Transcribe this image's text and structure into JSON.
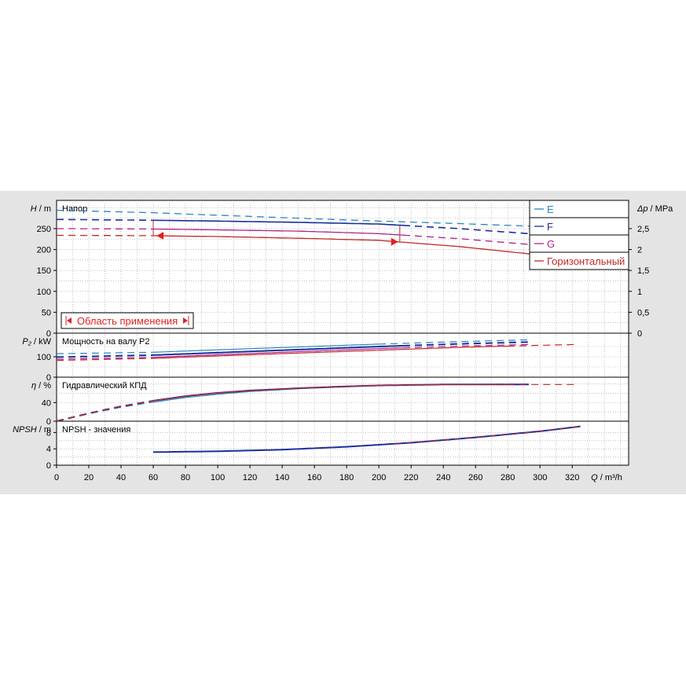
{
  "chart_data": {
    "type": "line",
    "x": {
      "label": "Q",
      "unit": "m³/h",
      "range": [
        0,
        355
      ],
      "ticks": [
        0,
        20,
        40,
        60,
        80,
        100,
        120,
        140,
        160,
        180,
        200,
        220,
        240,
        260,
        280,
        300,
        320
      ]
    },
    "colors": {
      "E": "#2a86b8",
      "F": "#1a2e9a",
      "G": "#b0208a",
      "Горизонтальный": "#c0282a"
    },
    "legend": {
      "placement": "top-right",
      "items": [
        {
          "key": "E",
          "label": "E"
        },
        {
          "key": "F",
          "label": "F"
        },
        {
          "key": "G",
          "label": "G"
        },
        {
          "key": "Горизонтальный",
          "label": "Горизонтальный"
        }
      ]
    },
    "panels": [
      {
        "id": "head",
        "title": "Напор",
        "ylabel_left": {
          "sym": "H",
          "unit": "m"
        },
        "ylabel_right": {
          "sym": "Δp",
          "unit": "MPa"
        },
        "ylim": [
          0,
          310
        ],
        "yticks": [
          0,
          50,
          100,
          150,
          200,
          250
        ],
        "yticks_right": [
          {
            "value": 0,
            "label": "0"
          },
          {
            "value": 0.5,
            "label": "0,5"
          },
          {
            "value": 1,
            "label": "1"
          },
          {
            "value": 1.5,
            "label": "1,5"
          },
          {
            "value": 2,
            "label": "2"
          },
          {
            "value": 2.5,
            "label": "2,5"
          }
        ],
        "right_scale": 0.01,
        "annotation": {
          "text": "Область применения",
          "q_min": 62,
          "q_max": 213
        },
        "series": [
          {
            "key": "E",
            "points": [
              [
                0,
                294
              ],
              [
                60,
                288
              ],
              [
                100,
                282
              ],
              [
                150,
                275
              ],
              [
                200,
                268
              ],
              [
                250,
                262
              ],
              [
                300,
                255
              ]
            ],
            "solid_range": [
              0,
              0
            ],
            "thick": 1.3
          },
          {
            "key": "F",
            "points": [
              [
                0,
                272
              ],
              [
                60,
                270
              ],
              [
                100,
                268
              ],
              [
                150,
                265
              ],
              [
                200,
                261
              ],
              [
                250,
                250
              ],
              [
                300,
                236
              ]
            ],
            "solid_range": [
              60,
              215
            ],
            "thick": 1.6
          },
          {
            "key": "G",
            "points": [
              [
                0,
                250
              ],
              [
                60,
                249
              ],
              [
                100,
                247
              ],
              [
                150,
                244
              ],
              [
                200,
                238
              ],
              [
                250,
                226
              ],
              [
                300,
                210
              ]
            ],
            "solid_range": [
              60,
              215
            ],
            "thick": 1.3
          },
          {
            "key": "Горизонтальный",
            "points": [
              [
                0,
                234
              ],
              [
                60,
                233
              ],
              [
                100,
                231
              ],
              [
                150,
                227
              ],
              [
                200,
                222
              ],
              [
                250,
                207
              ],
              [
                300,
                187
              ]
            ],
            "solid_range": [
              60,
              300
            ],
            "thick": 1.3
          }
        ]
      },
      {
        "id": "power",
        "title": "Мощность на валу P2",
        "ylabel_left": {
          "sym": "P₂",
          "unit": "kW"
        },
        "ylim": [
          0,
          200
        ],
        "yticks": [
          0,
          100
        ],
        "series": [
          {
            "key": "E",
            "points": [
              [
                0,
                115
              ],
              [
                60,
                122
              ],
              [
                100,
                134
              ],
              [
                150,
                148
              ],
              [
                200,
                162
              ],
              [
                250,
                174
              ],
              [
                293,
                183
              ]
            ],
            "solid_range": [
              60,
              200
            ],
            "thick": 1.2
          },
          {
            "key": "F",
            "points": [
              [
                0,
                98
              ],
              [
                60,
                108
              ],
              [
                100,
                120
              ],
              [
                150,
                135
              ],
              [
                200,
                150
              ],
              [
                250,
                163
              ],
              [
                293,
                172
              ]
            ],
            "solid_range": [
              60,
              215
            ],
            "thick": 2.0
          },
          {
            "key": "G",
            "points": [
              [
                0,
                88
              ],
              [
                60,
                97
              ],
              [
                100,
                110
              ],
              [
                150,
                125
              ],
              [
                200,
                140
              ],
              [
                250,
                152
              ],
              [
                293,
                160
              ]
            ],
            "solid_range": [
              60,
              215
            ],
            "thick": 1.2
          },
          {
            "key": "Горизонтальный",
            "points": [
              [
                0,
                82
              ],
              [
                60,
                92
              ],
              [
                100,
                104
              ],
              [
                150,
                118
              ],
              [
                200,
                132
              ],
              [
                250,
                146
              ],
              [
                300,
                156
              ],
              [
                322,
                160
              ]
            ],
            "solid_range": [
              60,
              280
            ],
            "thick": 1.2
          }
        ]
      },
      {
        "id": "eff",
        "title": "Гидравлический КПД",
        "ylabel_left": {
          "sym": "η",
          "unit": "%"
        },
        "ylim": [
          0,
          88
        ],
        "yticks": [
          0,
          40
        ],
        "series": [
          {
            "key": "E",
            "points": [
              [
                0,
                0
              ],
              [
                20,
                16
              ],
              [
                40,
                30
              ],
              [
                60,
                41
              ],
              [
                80,
                51
              ],
              [
                100,
                58
              ],
              [
                120,
                64
              ],
              [
                150,
                70
              ],
              [
                180,
                74
              ],
              [
                200,
                77
              ],
              [
                240,
                79
              ],
              [
                293,
                80
              ]
            ],
            "solid_range": [
              60,
              200
            ],
            "thick": 1.2
          },
          {
            "key": "F",
            "points": [
              [
                0,
                0
              ],
              [
                20,
                17
              ],
              [
                40,
                32
              ],
              [
                60,
                44
              ],
              [
                80,
                54
              ],
              [
                100,
                61
              ],
              [
                120,
                66
              ],
              [
                150,
                71
              ],
              [
                180,
                75
              ],
              [
                200,
                77
              ],
              [
                240,
                79
              ],
              [
                293,
                79
              ]
            ],
            "solid_range": [
              60,
              293
            ],
            "thick": 2.0
          },
          {
            "key": "Горизонтальный",
            "points": [
              [
                0,
                0
              ],
              [
                20,
                17
              ],
              [
                40,
                32
              ],
              [
                60,
                44
              ],
              [
                80,
                54
              ],
              [
                100,
                61
              ],
              [
                120,
                66
              ],
              [
                150,
                71
              ],
              [
                180,
                75
              ],
              [
                200,
                77
              ],
              [
                240,
                79
              ],
              [
                293,
                79
              ],
              [
                322,
                79
              ]
            ],
            "solid_range": [
              60,
              280
            ],
            "thick": 1.2
          }
        ]
      },
      {
        "id": "npsh",
        "title": "NPSH - значения",
        "ylabel_left": {
          "sym": "NPSH",
          "unit": "m"
        },
        "ylim": [
          0,
          10
        ],
        "yticks": [
          0,
          4,
          8
        ],
        "series": [
          {
            "key": "F",
            "points": [
              [
                60,
                3.2
              ],
              [
                100,
                3.4
              ],
              [
                140,
                3.8
              ],
              [
                180,
                4.5
              ],
              [
                220,
                5.5
              ],
              [
                260,
                6.8
              ],
              [
                300,
                8.3
              ],
              [
                325,
                9.5
              ]
            ],
            "solid_range": [
              60,
              325
            ],
            "thick": 2.0
          },
          {
            "key": "Горизонтальный",
            "points": [
              [
                210,
                5.3
              ],
              [
                260,
                6.8
              ],
              [
                300,
                8.3
              ],
              [
                325,
                9.5
              ]
            ],
            "solid_range": [
              0,
              0
            ],
            "thick": 1.0
          }
        ]
      }
    ]
  }
}
